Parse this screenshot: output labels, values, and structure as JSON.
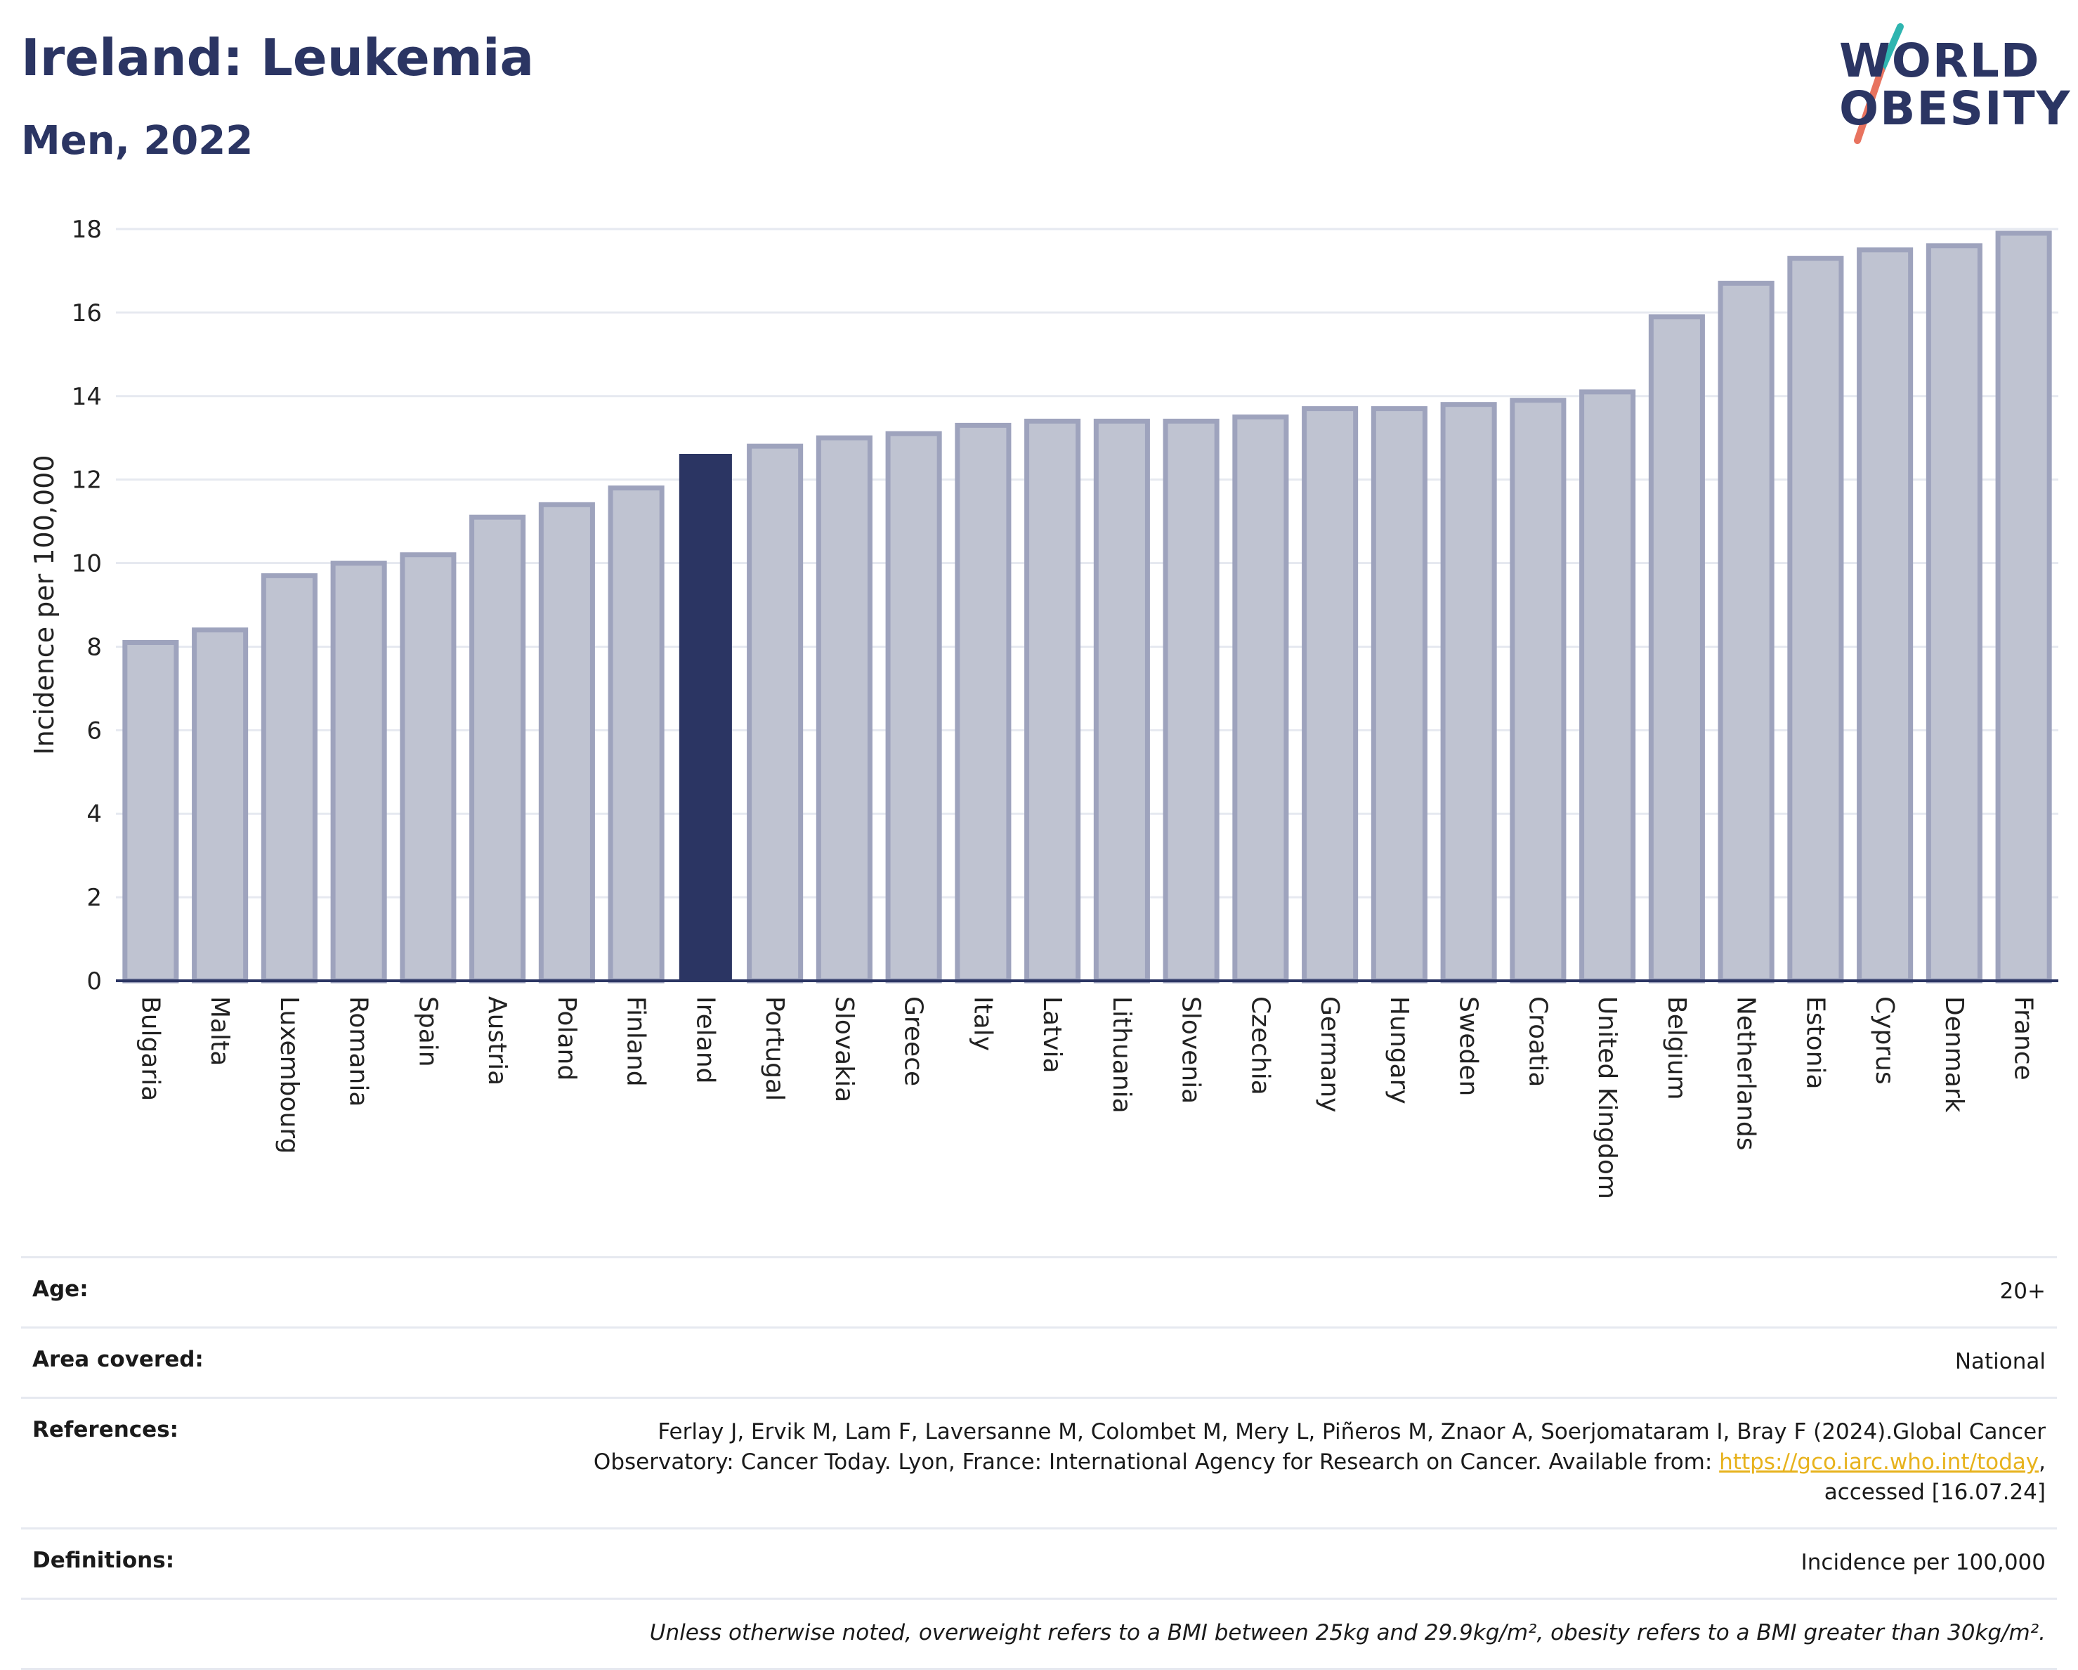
{
  "header": {
    "title": "Ireland: Leukemia",
    "subtitle": "Men, 2022"
  },
  "logo": {
    "line1": "WORLD",
    "line2": "OBESITY",
    "colors": {
      "text": "#2b3563",
      "slash_teal": "#2fb5b0",
      "slash_coral": "#e8735f"
    }
  },
  "chart_data": {
    "type": "bar",
    "ylabel": "Incidence per 100,000",
    "xlabel": "",
    "ylim": [
      0,
      18
    ],
    "yticks": [
      0,
      2,
      4,
      6,
      8,
      10,
      12,
      14,
      16,
      18
    ],
    "grid": true,
    "highlight": "Ireland",
    "colors": {
      "highlight": "#2b3563",
      "bar": "#bfc3d1",
      "bar_edge": "#9ea3bd",
      "grid": "#e6e9f0"
    },
    "categories": [
      "Bulgaria",
      "Malta",
      "Luxembourg",
      "Romania",
      "Spain",
      "Austria",
      "Poland",
      "Finland",
      "Ireland",
      "Portugal",
      "Slovakia",
      "Greece",
      "Italy",
      "Latvia",
      "Lithuania",
      "Slovenia",
      "Czechia",
      "Germany",
      "Hungary",
      "Sweden",
      "Croatia",
      "United Kingdom",
      "Belgium",
      "Netherlands",
      "Estonia",
      "Cyprus",
      "Denmark",
      "France"
    ],
    "values": [
      8.1,
      8.4,
      9.7,
      10.0,
      10.2,
      11.1,
      11.4,
      11.8,
      12.6,
      12.8,
      13.0,
      13.1,
      13.3,
      13.4,
      13.4,
      13.4,
      13.5,
      13.7,
      13.7,
      13.8,
      13.9,
      14.1,
      15.9,
      16.7,
      17.3,
      17.5,
      17.6,
      17.9
    ]
  },
  "info": {
    "age_label": "Age:",
    "age_value": "20+",
    "area_label": "Area covered:",
    "area_value": "National",
    "references_label": "References:",
    "references_text": "Ferlay J, Ervik M, Lam F, Laversanne M, Colombet M, Mery L, Piñeros M, Znaor A, Soerjomataram I, Bray F (2024).Global Cancer Observatory: Cancer Today. Lyon, France: International Agency for Research on Cancer. Available from: ",
    "references_link": "https://gco.iarc.who.int/today",
    "references_tail": ", accessed [16.07.24]",
    "definitions_label": "Definitions:",
    "definitions_value": "Incidence per 100,000",
    "note": "Unless otherwise noted, overweight refers to a BMI between 25kg and 29.9kg/m², obesity refers to a BMI greater than 30kg/m²."
  }
}
